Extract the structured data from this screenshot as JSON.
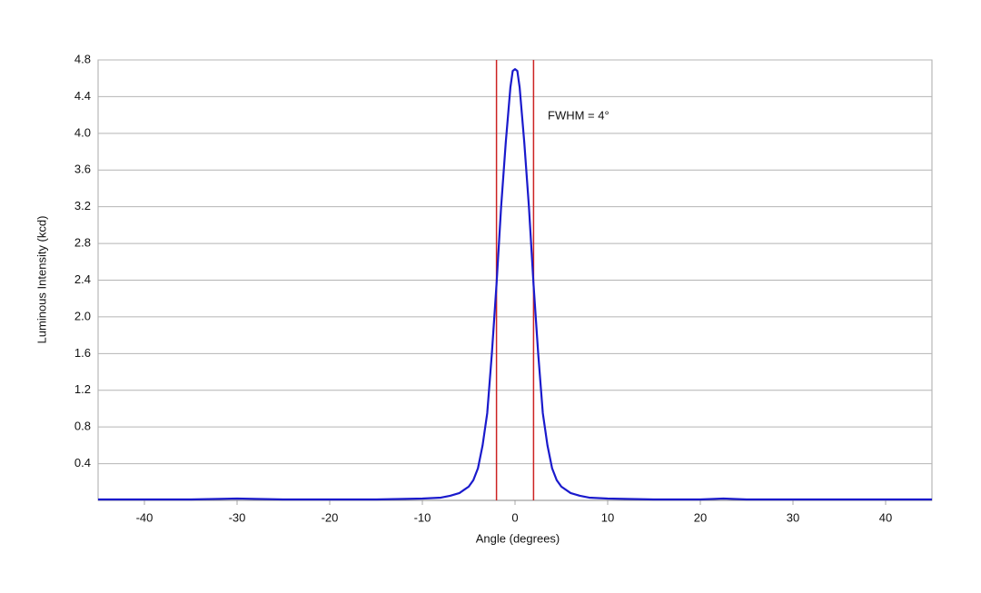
{
  "chart_data": {
    "type": "line",
    "x_label": "Angle (degrees)",
    "y_label": "Luminous Intensity (kcd)",
    "x": [
      -45,
      -40,
      -35,
      -30,
      -25,
      -20,
      -15,
      -10,
      -8,
      -7,
      -6,
      -5,
      -4.5,
      -4,
      -3.5,
      -3,
      -2.5,
      -2,
      -1.5,
      -1,
      -0.5,
      -0.25,
      0,
      0.25,
      0.5,
      1,
      1.5,
      2,
      2.5,
      3,
      3.5,
      4,
      4.5,
      5,
      6,
      7,
      8,
      10,
      15,
      20,
      22.5,
      25,
      30,
      35,
      40,
      45
    ],
    "values": [
      0.01,
      0.01,
      0.01,
      0.02,
      0.01,
      0.01,
      0.01,
      0.02,
      0.03,
      0.05,
      0.08,
      0.15,
      0.22,
      0.35,
      0.6,
      0.95,
      1.6,
      2.35,
      3.2,
      3.9,
      4.5,
      4.68,
      4.7,
      4.68,
      4.5,
      3.9,
      3.2,
      2.35,
      1.6,
      0.95,
      0.6,
      0.35,
      0.22,
      0.15,
      0.08,
      0.05,
      0.03,
      0.02,
      0.01,
      0.01,
      0.02,
      0.01,
      0.01,
      0.01,
      0.01,
      0.01
    ],
    "color": "#1a1acc",
    "vlines": [
      -2,
      2
    ],
    "vline_color": "#cc2222",
    "annotation": "FWHM = 4°",
    "xlim": [
      -45,
      45
    ],
    "xticks": [
      -40,
      -30,
      -20,
      -10,
      0,
      10,
      20,
      30,
      40
    ],
    "ylim": [
      0,
      4.8
    ],
    "yticks": [
      0.4,
      0.8,
      1.2,
      1.6,
      {
        "value": 2,
        "label": "2.0"
      },
      2.4,
      2.8,
      3.2,
      3.6,
      {
        "value": 4,
        "label": "4.0"
      },
      4.4,
      4.8
    ],
    "grid": true
  }
}
